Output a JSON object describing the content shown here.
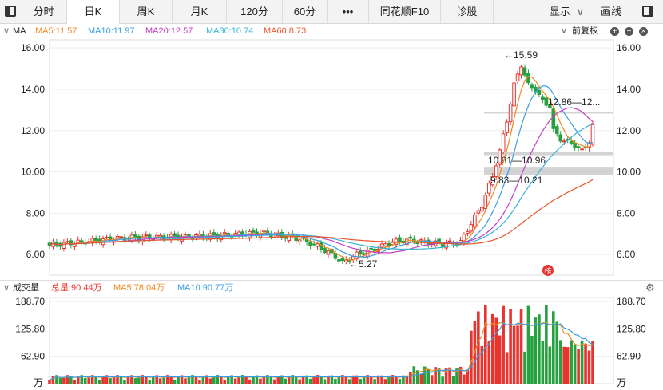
{
  "tabs": [
    {
      "label": "分时"
    },
    {
      "label": "日K"
    },
    {
      "label": "周K"
    },
    {
      "label": "月K"
    },
    {
      "label": "120分"
    },
    {
      "label": "60分"
    },
    {
      "label": "•••"
    },
    {
      "label": "同花顺F10"
    },
    {
      "label": "诊股"
    }
  ],
  "active_tab": "日K",
  "toolbar": {
    "display_label": "显示",
    "draw_label": "画线"
  },
  "price_panel": {
    "name": "MA",
    "ma5": "MA5:11.57",
    "ma10": "MA10:11.97",
    "ma20": "MA20:12.57",
    "ma30": "MA30:10.74",
    "ma60": "MA60:8.73",
    "adjust_label": "前复权",
    "colors": {
      "ma5": "#f08a24",
      "ma10": "#3a9de0",
      "ma20": "#c43fc4",
      "ma30": "#35b3d6",
      "ma60": "#e8552a",
      "up": "#e8342f",
      "down": "#27a040"
    }
  },
  "volume_panel": {
    "name": "成交量",
    "total": "总量:90.44万",
    "ma5": "MA5:78.04万",
    "ma10": "MA10:90.77万",
    "unit": "万"
  },
  "annotations": {
    "high": "←15.59",
    "low": "←5.27",
    "res1": "12.86—12...",
    "res2": "10.81—10.96",
    "res3": "9.83—10.21",
    "badge": "榜"
  },
  "chart_data": [
    {
      "type": "candlestick",
      "ylim": [
        5.0,
        16.2
      ],
      "y_ticks": [
        "16.00",
        "14.00",
        "12.00",
        "10.00",
        "8.00",
        "6.00"
      ],
      "series_names": [
        "MA5",
        "MA10",
        "MA20",
        "MA30",
        "MA60"
      ],
      "high": 15.59,
      "low": 5.27,
      "support_resistance_zones": [
        [
          12.86,
          12.9
        ],
        [
          10.81,
          10.96
        ],
        [
          9.83,
          10.21
        ]
      ]
    },
    {
      "type": "bar",
      "y_ticks": [
        "188.70",
        "125.80",
        "62.90",
        "万"
      ],
      "ylim": [
        0,
        188.7
      ],
      "latest_total": 90.44,
      "ma5": 78.04,
      "ma10": 90.77
    }
  ]
}
